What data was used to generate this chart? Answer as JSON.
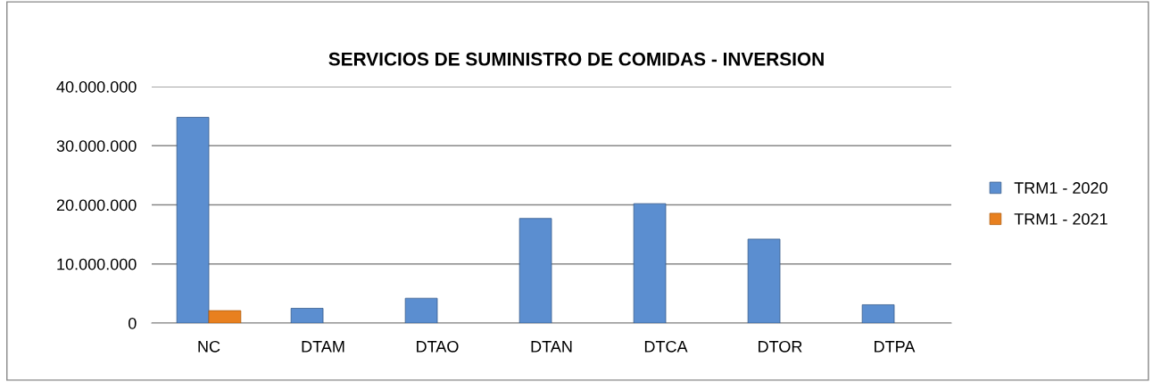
{
  "chart_data": {
    "type": "bar",
    "title": "SERVICIOS DE SUMINISTRO DE COMIDAS - INVERSION",
    "categories": [
      "NC",
      "DTAM",
      "DTAO",
      "DTAN",
      "DTCA",
      "DTOR",
      "DTPA"
    ],
    "series": [
      {
        "name": "TRM1 - 2020",
        "color": "#5b8ed0",
        "values": [
          34800000,
          2500000,
          4200000,
          17700000,
          20200000,
          14200000,
          3100000
        ]
      },
      {
        "name": "TRM1 - 2021",
        "color": "#e8801f",
        "values": [
          2100000,
          null,
          null,
          null,
          null,
          null,
          null
        ]
      }
    ],
    "ylim": [
      0,
      40000000
    ],
    "yticks": [
      0,
      {
        "value": 10000000,
        "label": "10.000.000"
      },
      {
        "value": 20000000,
        "label": "20.000.000"
      },
      {
        "value": 30000000,
        "label": "30.000.000"
      },
      {
        "value": 40000000,
        "label": "40.000.000"
      }
    ],
    "grid": "y",
    "legend": "right"
  }
}
